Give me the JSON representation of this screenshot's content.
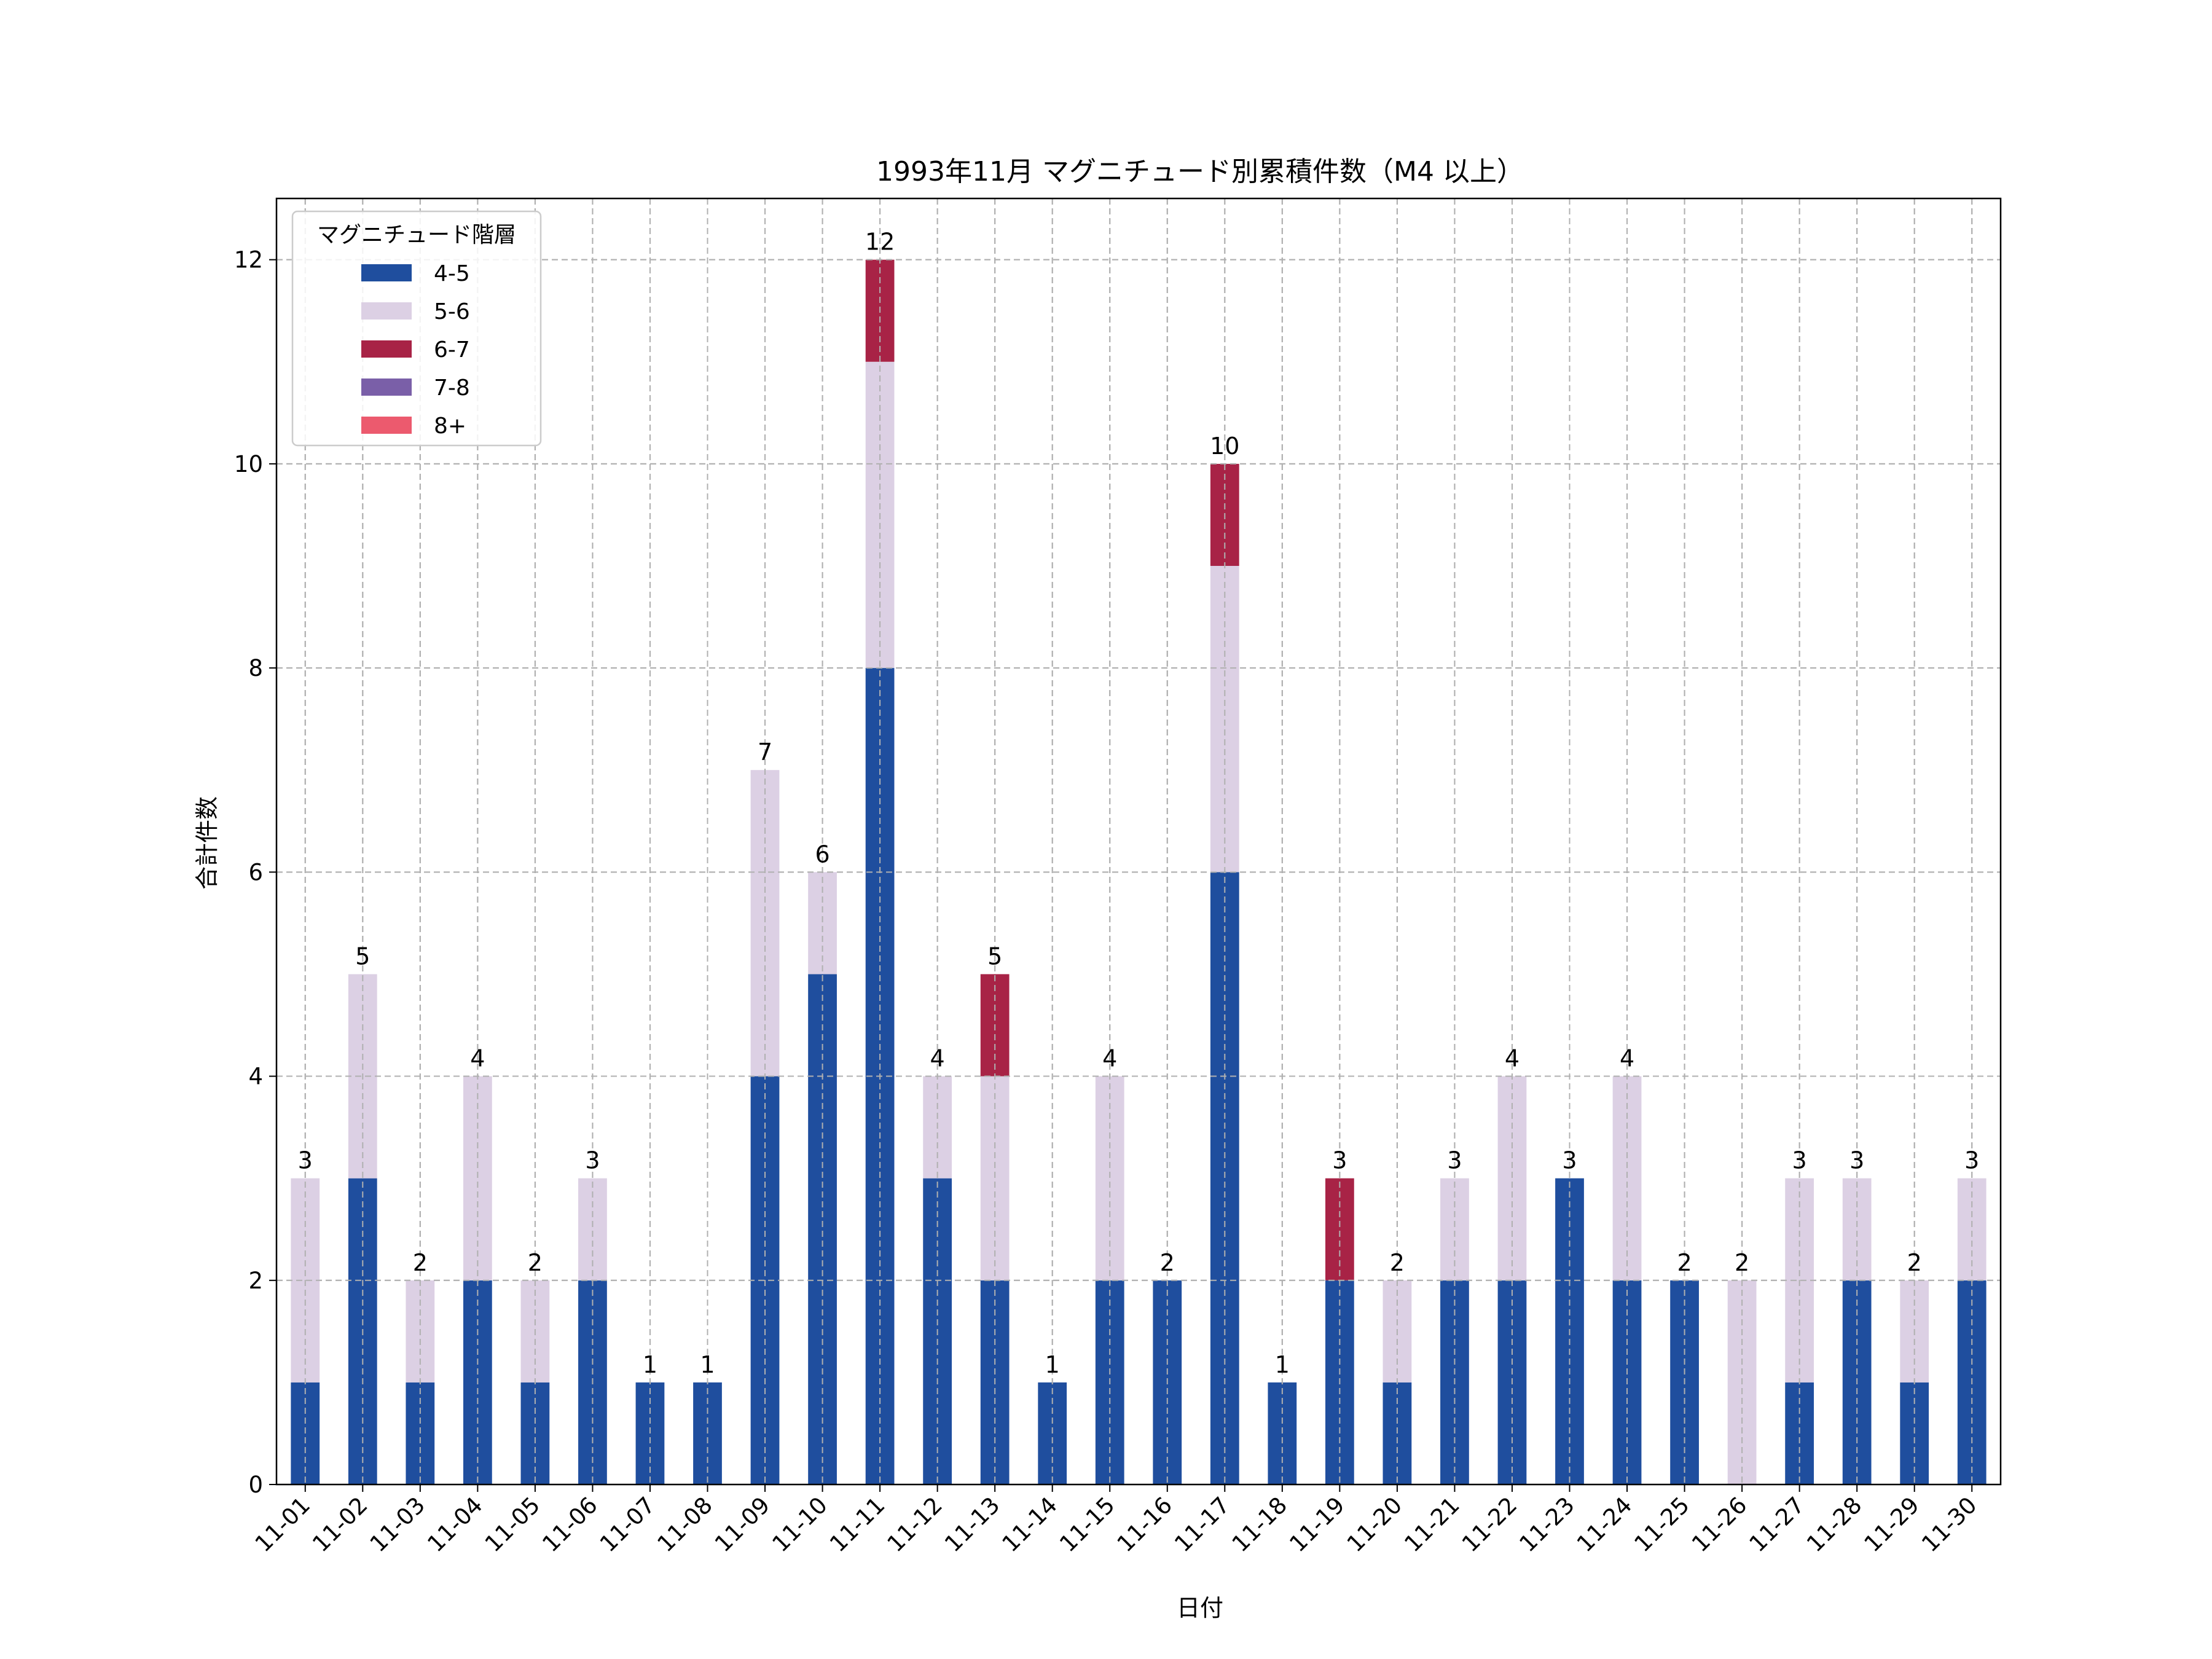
{
  "chart_data": {
    "type": "bar",
    "stacked": true,
    "title": "1993年11月 マグニチュード別累積件数（M4 以上）",
    "xlabel": "日付",
    "ylabel": "合計件数",
    "ylim": [
      0,
      12.6
    ],
    "yticks": [
      0,
      2,
      4,
      6,
      8,
      10,
      12
    ],
    "grid": true,
    "legend_title": "マグニチュード階層",
    "legend_position": "upper left",
    "categories": [
      "11-01",
      "11-02",
      "11-03",
      "11-04",
      "11-05",
      "11-06",
      "11-07",
      "11-08",
      "11-09",
      "11-10",
      "11-11",
      "11-12",
      "11-13",
      "11-14",
      "11-15",
      "11-16",
      "11-17",
      "11-18",
      "11-19",
      "11-20",
      "11-21",
      "11-22",
      "11-23",
      "11-24",
      "11-25",
      "11-26",
      "11-27",
      "11-28",
      "11-29",
      "11-30"
    ],
    "series": [
      {
        "name": "4-5",
        "color": "#1f4e9e",
        "values": [
          1,
          3,
          1,
          2,
          1,
          2,
          1,
          1,
          4,
          5,
          8,
          3,
          2,
          1,
          2,
          2,
          6,
          1,
          2,
          1,
          2,
          2,
          3,
          2,
          2,
          0,
          1,
          2,
          1,
          2
        ]
      },
      {
        "name": "5-6",
        "color": "#dcd0e4",
        "values": [
          2,
          2,
          1,
          2,
          1,
          1,
          0,
          0,
          3,
          1,
          3,
          1,
          2,
          0,
          2,
          0,
          3,
          0,
          0,
          1,
          1,
          2,
          0,
          2,
          0,
          2,
          2,
          1,
          1,
          1
        ]
      },
      {
        "name": "6-7",
        "color": "#a82346",
        "values": [
          0,
          0,
          0,
          0,
          0,
          0,
          0,
          0,
          0,
          0,
          1,
          0,
          1,
          0,
          0,
          0,
          1,
          0,
          1,
          0,
          0,
          0,
          0,
          0,
          0,
          0,
          0,
          0,
          0,
          0
        ]
      },
      {
        "name": "7-8",
        "color": "#7a5fa8",
        "values": [
          0,
          0,
          0,
          0,
          0,
          0,
          0,
          0,
          0,
          0,
          0,
          0,
          0,
          0,
          0,
          0,
          0,
          0,
          0,
          0,
          0,
          0,
          0,
          0,
          0,
          0,
          0,
          0,
          0,
          0
        ]
      },
      {
        "name": "8+",
        "color": "#ec5a6e",
        "values": [
          0,
          0,
          0,
          0,
          0,
          0,
          0,
          0,
          0,
          0,
          0,
          0,
          0,
          0,
          0,
          0,
          0,
          0,
          0,
          0,
          0,
          0,
          0,
          0,
          0,
          0,
          0,
          0,
          0,
          0
        ]
      }
    ],
    "totals": [
      3,
      5,
      2,
      4,
      2,
      3,
      1,
      1,
      7,
      6,
      12,
      4,
      5,
      1,
      4,
      2,
      10,
      1,
      3,
      2,
      3,
      4,
      3,
      4,
      2,
      2,
      3,
      3,
      2,
      3
    ]
  }
}
